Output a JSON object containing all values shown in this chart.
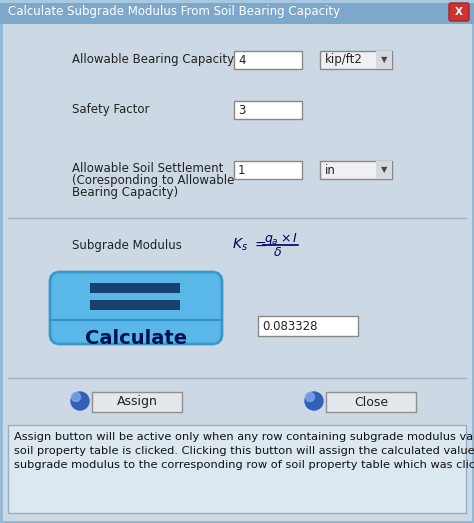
{
  "title": "Calculate Subgrade Modulus From Soil Bearing Capacity",
  "bg_color": "#ccd8e4",
  "titlebar_color": "#7da8cc",
  "titlebar_text_color": "#ffffff",
  "close_btn_color": "#cc3333",
  "label1": "Allowable Bearing Capacity",
  "value1": "4",
  "unit1": "kip/ft2",
  "label2": "Safety Factor",
  "value2": "3",
  "label3_line1": "Allowable Soil Settlement",
  "label3_line2": "(Coresponding to Allowable",
  "label3_line3": "Bearing Capacity)",
  "value3": "1",
  "unit3": "in",
  "label4": "Subgrade Modulus",
  "result_value": "0.083328",
  "btn_bg": "#5ab8e8",
  "btn_text": "Calculate",
  "btn_text_color": "#001050",
  "btn_bar_color": "#1a4070",
  "btn_line_color": "#3090c8",
  "assign_label": "Assign",
  "close_label": "Close",
  "footer_text": "Assign button will be active only when any row containing subgrade modulus value in\nsoil property table is clicked. Clicking this button will assign the calculated value of\nsubgrade modulus to the corresponding row of soil property table which was clicked.",
  "footer_fontsize": 8.2,
  "border_color": "#90b8d8"
}
